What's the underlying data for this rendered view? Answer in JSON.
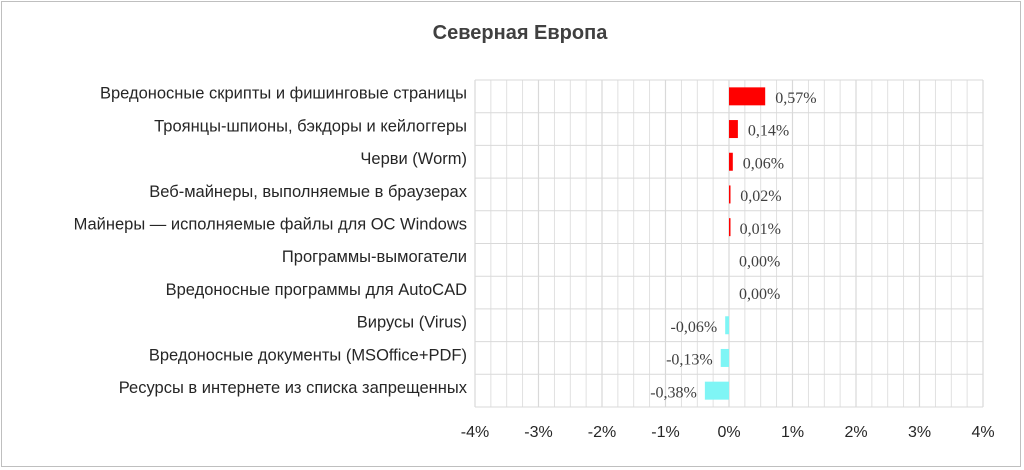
{
  "chart_data": {
    "type": "bar",
    "orientation": "horizontal",
    "title": "Северная Европа",
    "categories": [
      "Вредоносные скрипты и фишинговые страницы",
      "Троянцы-шпионы, бэкдоры и кейлоггеры",
      "Черви (Worm)",
      "Веб-майнеры, выполняемые в браузерах",
      "Майнеры — исполняемые файлы для ОС Windows",
      "Программы-вымогатели",
      "Вредоносные программы для AutoCAD",
      "Вирусы (Virus)",
      "Вредоносные документы (MSOffice+PDF)",
      "Ресурсы в интернете из списка запрещенных"
    ],
    "values": [
      0.57,
      0.14,
      0.06,
      0.02,
      0.01,
      0.0,
      0.0,
      -0.06,
      -0.13,
      -0.38
    ],
    "data_labels": [
      "0,57%",
      "0,14%",
      "0,06%",
      "0,02%",
      "0,01%",
      "0,00%",
      "0,00%",
      "-0,06%",
      "-0,13%",
      "-0,38%"
    ],
    "xlim": [
      -4,
      4
    ],
    "x_ticks": [
      -4,
      -3,
      -2,
      -1,
      0,
      1,
      2,
      3,
      4
    ],
    "x_tick_labels": [
      "-4%",
      "-3%",
      "-2%",
      "-1%",
      "0%",
      "1%",
      "2%",
      "3%",
      "4%"
    ],
    "grid": true,
    "legend": "none",
    "colors": {
      "positive": "#ff0000",
      "negative": "#7ff5f5",
      "grid": "#d9d9d9"
    }
  }
}
